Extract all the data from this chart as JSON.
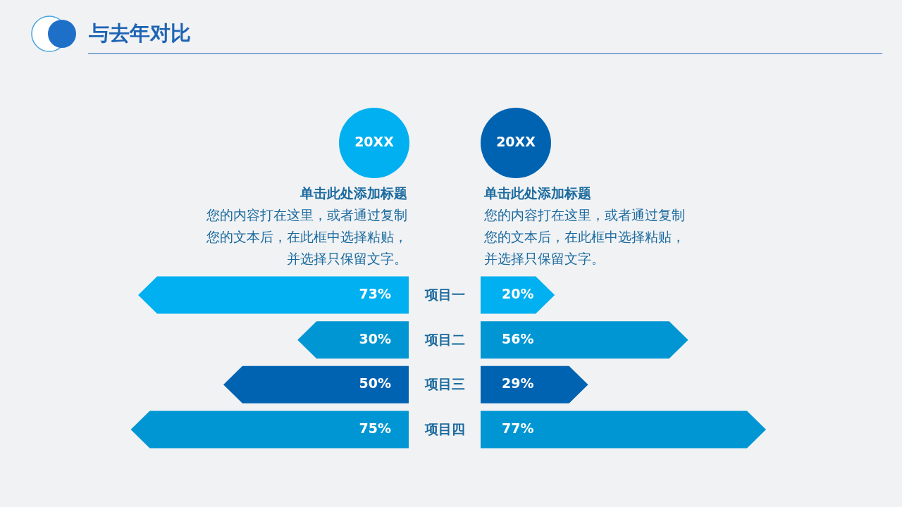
{
  "chart_data": [
    {
      "type": "bar",
      "orientation": "horizontal",
      "title": "20XX",
      "subtitle": "单击此处添加标题",
      "annotations": [
        "与去年对比",
        "您的内容打在这里，或者通过复制您的文本后，在此框中选择粘贴，并选择只保留文字。"
      ],
      "categories": [
        "项目一",
        "项目二",
        "项目三",
        "项目四"
      ],
      "values": [
        73,
        30,
        50,
        75
      ],
      "value_labels": [
        "73%",
        "30%",
        "50%",
        "75%"
      ],
      "colors": [
        "#00b0f0",
        "#0096d3",
        "#0063b1",
        "#0096d3"
      ],
      "tick_labels": "y"
    },
    {
      "type": "bar",
      "orientation": "horizontal",
      "title": "20XX",
      "subtitle": "单击此处添加标题",
      "annotations": [
        "您的内容打在这里，或者通过复制您的文本后，在此框中选择粘贴，并选择只保留文字。"
      ],
      "categories": [
        null,
        null,
        null,
        null
      ],
      "values": [
        20,
        56,
        29,
        77
      ],
      "value_labels": [
        "20%",
        "56%",
        "29%",
        "77%"
      ],
      "colors": [
        "#00b0f0",
        "#0096d3",
        "#0063b1",
        "#0096d3"
      ]
    }
  ]
}
